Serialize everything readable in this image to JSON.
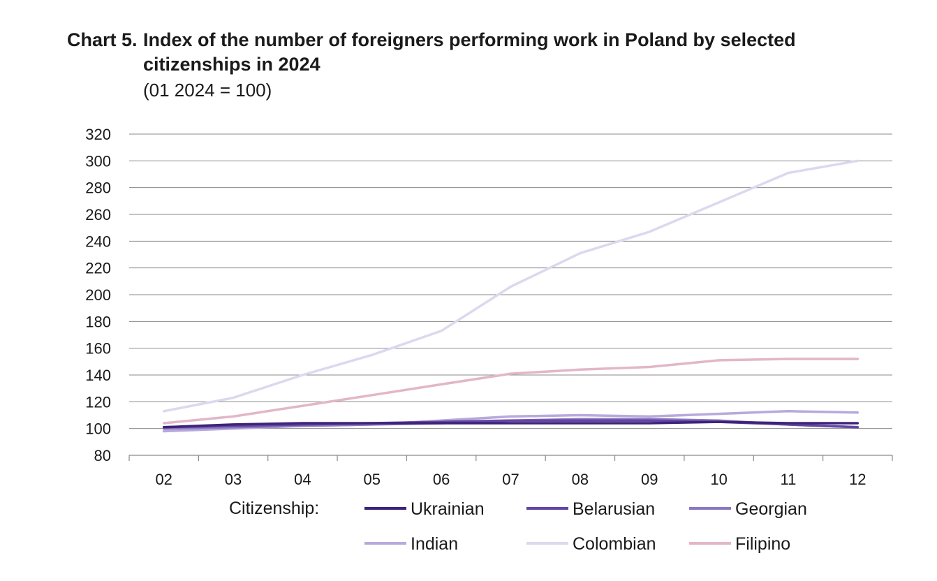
{
  "title": {
    "prefix": "Chart 5.",
    "main": "Index of the number of foreigners performing work in Poland by selected citizenships in 2024",
    "subtitle": "(01 2024 = 100)"
  },
  "chart_data": {
    "type": "line",
    "x": [
      "02",
      "03",
      "04",
      "05",
      "06",
      "07",
      "08",
      "09",
      "10",
      "11",
      "12"
    ],
    "ylim": [
      80,
      320
    ],
    "yticks": [
      "80",
      "100",
      "120",
      "140",
      "160",
      "180",
      "200",
      "220",
      "240",
      "260",
      "280",
      "300",
      "320"
    ],
    "grid": true,
    "legend_title": "Citizenship:",
    "legend_position": "bottom",
    "series": [
      {
        "name": "Ukrainian",
        "color": "#3d2379",
        "values": [
          101,
          103,
          104,
          104,
          104,
          104,
          104,
          104,
          105,
          104,
          104
        ]
      },
      {
        "name": "Belarusian",
        "color": "#6446a4",
        "values": [
          101,
          102,
          103,
          104,
          105,
          106,
          106,
          106,
          105,
          103,
          101
        ]
      },
      {
        "name": "Georgian",
        "color": "#8c78c0",
        "values": [
          100,
          101,
          102,
          103,
          104,
          106,
          107,
          107,
          106,
          103,
          101
        ]
      },
      {
        "name": "Indian",
        "color": "#b7a9dc",
        "values": [
          98,
          100,
          102,
          103,
          106,
          109,
          110,
          109,
          111,
          113,
          112
        ]
      },
      {
        "name": "Colombian",
        "color": "#dcd8ee",
        "values": [
          113,
          123,
          140,
          155,
          173,
          206,
          231,
          247,
          269,
          291,
          300
        ]
      },
      {
        "name": "Filipino",
        "color": "#e2b6c8",
        "values": [
          104,
          109,
          117,
          125,
          133,
          141,
          144,
          146,
          151,
          152,
          152
        ]
      }
    ]
  }
}
